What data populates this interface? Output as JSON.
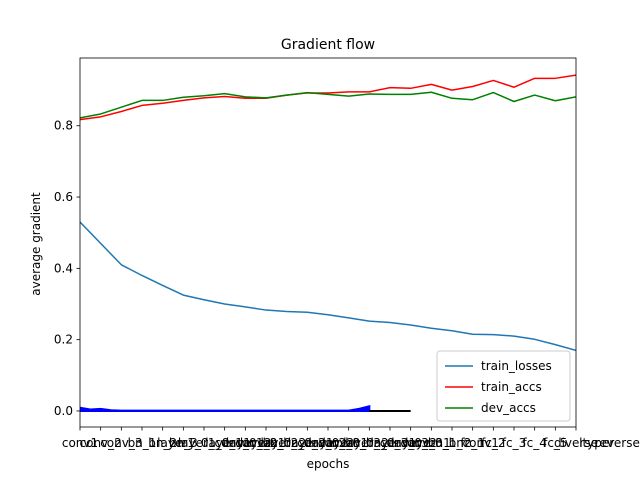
{
  "chart_data": {
    "type": "line",
    "title": "Gradient flow",
    "xlabel": "epochs",
    "ylabel": "average gradient",
    "xlim": [
      0,
      24
    ],
    "ylim": [
      -0.045,
      0.99
    ],
    "y_ticks": [
      0.0,
      0.2,
      0.4,
      0.6,
      0.8
    ],
    "y_tick_labels": [
      "0.0",
      "0.2",
      "0.4",
      "0.6",
      "0.8"
    ],
    "grid": false,
    "legend_position": "lower-right",
    "x_tick_labels": [
      "conv1",
      "conv_2",
      "conv_3",
      "bn_1",
      "bn_2",
      "bn_3",
      "layer1_0_conv1",
      "layer1_0_conv2",
      "layer1_0_bn1",
      "layer1_0_bn2",
      "layer2_0_conv1",
      "layer2_0_conv2",
      "layer2_0_bn1",
      "layer2_0_bn2",
      "layer3_0_conv1",
      "layer3_0_conv2",
      "layer3_0_bn1",
      "layer3_0_bn2",
      "layer3_1_conv1",
      "fc_1",
      "fc_2",
      "fc_3",
      "fc_4",
      "fc_5",
      "diverse",
      "ltyper",
      "reverse"
    ],
    "series": [
      {
        "name": "train_losses",
        "color": "#1f77b4",
        "x": [
          0,
          1,
          2,
          3,
          4,
          5,
          6,
          7,
          8,
          9,
          10,
          11,
          12,
          13,
          14,
          15,
          16,
          17,
          18,
          19,
          20,
          21,
          22,
          23,
          24
        ],
        "values": [
          0.53,
          0.47,
          0.41,
          0.38,
          0.352,
          0.325,
          0.312,
          0.3,
          0.292,
          0.283,
          0.279,
          0.277,
          0.27,
          0.261,
          0.252,
          0.248,
          0.241,
          0.232,
          0.225,
          0.215,
          0.214,
          0.21,
          0.201,
          0.186,
          0.17
        ]
      },
      {
        "name": "train_accs",
        "color": "#ff0000",
        "x": [
          0,
          1,
          2,
          3,
          4,
          5,
          6,
          7,
          8,
          9,
          10,
          11,
          12,
          13,
          14,
          15,
          16,
          17,
          18,
          19,
          20,
          21,
          22,
          23,
          24
        ],
        "values": [
          0.817,
          0.825,
          0.84,
          0.857,
          0.863,
          0.871,
          0.878,
          0.882,
          0.877,
          0.877,
          0.886,
          0.892,
          0.892,
          0.895,
          0.895,
          0.907,
          0.905,
          0.916,
          0.9,
          0.91,
          0.927,
          0.908,
          0.933,
          0.933,
          0.942
        ]
      },
      {
        "name": "dev_accs",
        "color": "#008000",
        "x": [
          0,
          1,
          2,
          3,
          4,
          5,
          6,
          7,
          8,
          9,
          10,
          11,
          12,
          13,
          14,
          15,
          16,
          17,
          18,
          19,
          20,
          21,
          22,
          23,
          24
        ],
        "values": [
          0.822,
          0.833,
          0.852,
          0.871,
          0.871,
          0.88,
          0.884,
          0.89,
          0.881,
          0.878,
          0.886,
          0.893,
          0.888,
          0.883,
          0.889,
          0.888,
          0.888,
          0.894,
          0.877,
          0.873,
          0.893,
          0.868,
          0.886,
          0.87,
          0.881
        ]
      },
      {
        "color": "#0000ff",
        "fill": true,
        "x": [
          0,
          0.5,
          1,
          1.5,
          2,
          3,
          4,
          5,
          6,
          7,
          8,
          9,
          10,
          11,
          12,
          13,
          13.5,
          14
        ],
        "values": [
          0.009,
          0.004,
          0.006,
          0.002,
          0.001,
          0.001,
          0.001,
          0.001,
          0.001,
          0.001,
          0.001,
          0.001,
          0.001,
          0.001,
          0.001,
          0.001,
          0.006,
          0.013
        ]
      },
      {
        "color": "#000000",
        "x": [
          14,
          16
        ],
        "values": [
          0.0,
          0.0
        ]
      }
    ]
  }
}
